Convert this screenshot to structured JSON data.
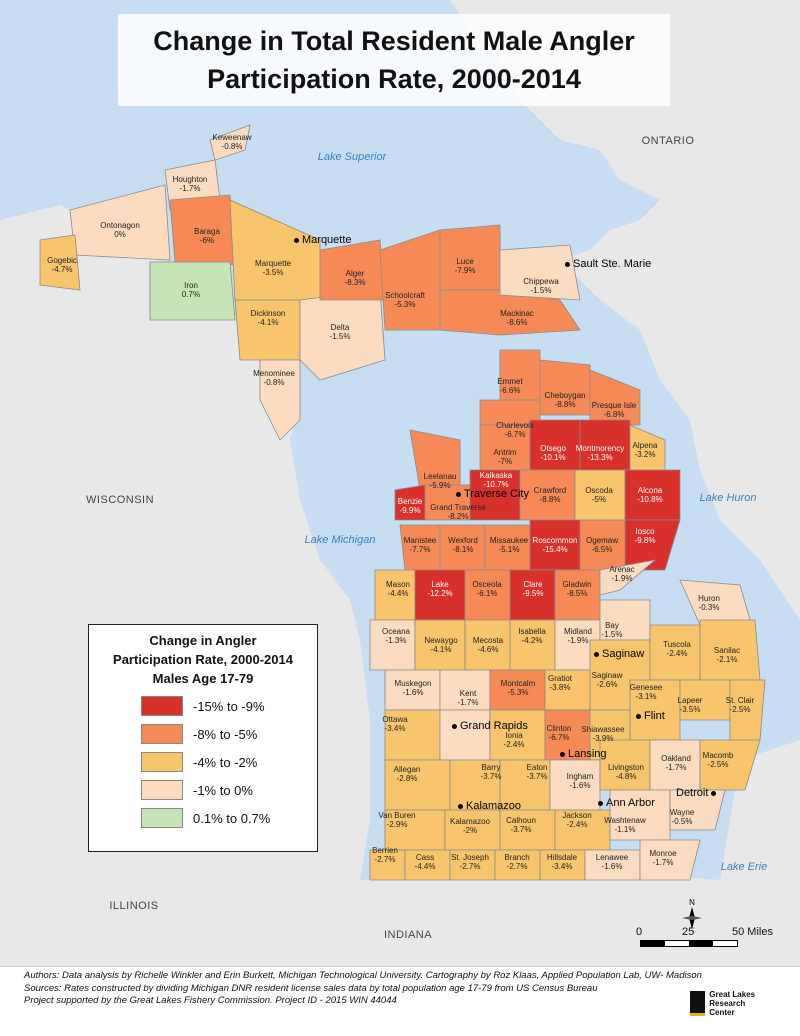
{
  "title": {
    "line1": "Change in Total Resident Male Angler",
    "line2": "Participation Rate, 2000-2014"
  },
  "colors": {
    "class_1": "#d8302b",
    "class_2": "#f58a57",
    "class_3": "#f8c56c",
    "class_4": "#fbdcc1",
    "class_5": "#c6e5b6",
    "land_other": "#e8e8e8",
    "water": "#c6ddf2"
  },
  "legend": {
    "title_line1": "Change in Angler",
    "title_line2": "Participation Rate, 2000-2014",
    "title_line3": "Males Age 17-79",
    "items": [
      {
        "label": "-15% to -9%",
        "color": "#d8302b"
      },
      {
        "label": "-8% to -5%",
        "color": "#f58a57"
      },
      {
        "label": "-4% to -2%",
        "color": "#f8c56c"
      },
      {
        "label": "-1% to 0%",
        "color": "#fbdcc1"
      },
      {
        "label": "0.1% to 0.7%",
        "color": "#c6e5b6"
      }
    ]
  },
  "water_labels": {
    "superior": "Lake Superior",
    "michigan": "Lake Michigan",
    "huron": "Lake Huron",
    "erie": "Lake Erie"
  },
  "region_labels": {
    "ontario": "ONTARIO",
    "wisconsin": "WISCONSIN",
    "illinois": "ILLINOIS",
    "indiana": "INDIANA"
  },
  "cities": {
    "marquette": "Marquette",
    "sault": "Sault Ste. Marie",
    "traverse": "Traverse City",
    "saginaw": "Saginaw",
    "flint": "Flint",
    "grand_rapids": "Grand Rapids",
    "lansing": "Lansing",
    "kalamazoo": "Kalamazoo",
    "ann_arbor": "Ann Arbor",
    "detroit": "Detroit"
  },
  "counties": [
    {
      "name": "Keweenaw",
      "value": "-0.8%",
      "cls": 4
    },
    {
      "name": "Houghton",
      "value": "-1.7%",
      "cls": 4
    },
    {
      "name": "Ontonagon",
      "value": "0%",
      "cls": 4
    },
    {
      "name": "Gogebic",
      "value": "-4.7%",
      "cls": 3
    },
    {
      "name": "Baraga",
      "value": "-6%",
      "cls": 2
    },
    {
      "name": "Iron",
      "value": "0.7%",
      "cls": 5
    },
    {
      "name": "Marquette",
      "value": "-3.5%",
      "cls": 3
    },
    {
      "name": "Dickinson",
      "value": "-4.1%",
      "cls": 3
    },
    {
      "name": "Menominee",
      "value": "-0.8%",
      "cls": 4
    },
    {
      "name": "Delta",
      "value": "-1.5%",
      "cls": 4
    },
    {
      "name": "Alger",
      "value": "-8.3%",
      "cls": 2
    },
    {
      "name": "Schoolcraft",
      "value": "-5.3%",
      "cls": 2
    },
    {
      "name": "Luce",
      "value": "-7.9%",
      "cls": 2
    },
    {
      "name": "Mackinac",
      "value": "-8.6%",
      "cls": 2
    },
    {
      "name": "Chippewa",
      "value": "-1.5%",
      "cls": 4
    },
    {
      "name": "Emmet",
      "value": "-6.6%",
      "cls": 2
    },
    {
      "name": "Cheboygan",
      "value": "-8.8%",
      "cls": 2
    },
    {
      "name": "Presque Isle",
      "value": "-6.8%",
      "cls": 2
    },
    {
      "name": "Charlevoix",
      "value": "-6.7%",
      "cls": 2
    },
    {
      "name": "Antrim",
      "value": "-7%",
      "cls": 2
    },
    {
      "name": "Otsego",
      "value": "-10.1%",
      "cls": 1
    },
    {
      "name": "Montmorency",
      "value": "-13.3%",
      "cls": 1
    },
    {
      "name": "Alpena",
      "value": "-3.2%",
      "cls": 3
    },
    {
      "name": "Leelanau",
      "value": "-5.9%",
      "cls": 2
    },
    {
      "name": "Benzie",
      "value": "-9.9%",
      "cls": 1
    },
    {
      "name": "Grand Traverse",
      "value": "-8.2%",
      "cls": 2
    },
    {
      "name": "Kalkaska",
      "value": "-10.7%",
      "cls": 1
    },
    {
      "name": "Crawford",
      "value": "-8.8%",
      "cls": 2
    },
    {
      "name": "Oscoda",
      "value": "-5%",
      "cls": 3
    },
    {
      "name": "Alcona",
      "value": "-10.8%",
      "cls": 1
    },
    {
      "name": "Manistee",
      "value": "-7.7%",
      "cls": 2
    },
    {
      "name": "Wexford",
      "value": "-8.1%",
      "cls": 2
    },
    {
      "name": "Missaukee",
      "value": "-5.1%",
      "cls": 2
    },
    {
      "name": "Roscommon",
      "value": "-15.4%",
      "cls": 1
    },
    {
      "name": "Ogemaw",
      "value": "-6.5%",
      "cls": 2
    },
    {
      "name": "Iosco",
      "value": "-9.8%",
      "cls": 1
    },
    {
      "name": "Mason",
      "value": "-4.4%",
      "cls": 3
    },
    {
      "name": "Lake",
      "value": "-12.2%",
      "cls": 1
    },
    {
      "name": "Osceola",
      "value": "-6.1%",
      "cls": 2
    },
    {
      "name": "Clare",
      "value": "-9.5%",
      "cls": 1
    },
    {
      "name": "Gladwin",
      "value": "-8.5%",
      "cls": 2
    },
    {
      "name": "Arenac",
      "value": "-1.9%",
      "cls": 4
    },
    {
      "name": "Oceana",
      "value": "-1.3%",
      "cls": 4
    },
    {
      "name": "Newaygo",
      "value": "-4.1%",
      "cls": 3
    },
    {
      "name": "Mecosta",
      "value": "-4.6%",
      "cls": 3
    },
    {
      "name": "Isabella",
      "value": "-4.2%",
      "cls": 3
    },
    {
      "name": "Midland",
      "value": "-1.9%",
      "cls": 4
    },
    {
      "name": "Bay",
      "value": "-1.5%",
      "cls": 4
    },
    {
      "name": "Huron",
      "value": "-0.3%",
      "cls": 4
    },
    {
      "name": "Muskegon",
      "value": "-1.6%",
      "cls": 4
    },
    {
      "name": "Montcalm",
      "value": "-5.3%",
      "cls": 2
    },
    {
      "name": "Gratiot",
      "value": "-3.8%",
      "cls": 3
    },
    {
      "name": "Saginaw",
      "value": "-2.6%",
      "cls": 3
    },
    {
      "name": "Tuscola",
      "value": "-2.4%",
      "cls": 3
    },
    {
      "name": "Sanilac",
      "value": "-2.1%",
      "cls": 3
    },
    {
      "name": "Kent",
      "value": "-1.7%",
      "cls": 4
    },
    {
      "name": "Ionia",
      "value": "-2.4%",
      "cls": 3
    },
    {
      "name": "Clinton",
      "value": "-6.7%",
      "cls": 2
    },
    {
      "name": "Shiawassee",
      "value": "-3.9%",
      "cls": 3
    },
    {
      "name": "Genesee",
      "value": "-3.1%",
      "cls": 3
    },
    {
      "name": "Lapeer",
      "value": "-3.5%",
      "cls": 3
    },
    {
      "name": "St. Clair",
      "value": "-2.5%",
      "cls": 3
    },
    {
      "name": "Ottawa",
      "value": "-3.4%",
      "cls": 3
    },
    {
      "name": "Allegan",
      "value": "-2.8%",
      "cls": 3
    },
    {
      "name": "Barry",
      "value": "-3.7%",
      "cls": 3
    },
    {
      "name": "Eaton",
      "value": "-3.7%",
      "cls": 3
    },
    {
      "name": "Ingham",
      "value": "-1.6%",
      "cls": 4
    },
    {
      "name": "Livingston",
      "value": "-4.8%",
      "cls": 3
    },
    {
      "name": "Oakland",
      "value": "-1.7%",
      "cls": 4
    },
    {
      "name": "Macomb",
      "value": "-2.5%",
      "cls": 3
    },
    {
      "name": "Van Buren",
      "value": "-2.9%",
      "cls": 3
    },
    {
      "name": "Kalamazoo",
      "value": "-2%",
      "cls": 3
    },
    {
      "name": "Calhoun",
      "value": "-3.7%",
      "cls": 3
    },
    {
      "name": "Jackson",
      "value": "-2.4%",
      "cls": 3
    },
    {
      "name": "Washtenaw",
      "value": "-1.1%",
      "cls": 4
    },
    {
      "name": "Wayne",
      "value": "-0.5%",
      "cls": 4
    },
    {
      "name": "Berrien",
      "value": "-2.7%",
      "cls": 3
    },
    {
      "name": "Cass",
      "value": "-4.4%",
      "cls": 3
    },
    {
      "name": "St. Joseph",
      "value": "-2.7%",
      "cls": 3
    },
    {
      "name": "Branch",
      "value": "-2.7%",
      "cls": 3
    },
    {
      "name": "Hillsdale",
      "value": "-3.4%",
      "cls": 3
    },
    {
      "name": "Lenawee",
      "value": "-1.6%",
      "cls": 4
    },
    {
      "name": "Monroe",
      "value": "-1.7%",
      "cls": 4
    }
  ],
  "scale": {
    "t0": "0",
    "t1": "25",
    "t2": "50 Miles"
  },
  "north": "N",
  "footer": {
    "line1": "Authors: Data analysis by Richelle Winkler and Erin Burkett, Michigan Technological University. Cartography by Roz Klaas, Applied Population Lab, UW- Madison",
    "line2": "Sources: Rates constructed by dividing Michigan DNR resident license sales data by total population age 17-79 from US Census Bureau",
    "line3": "Project supported by the Great Lakes Fishery Commission. Project ID - 2015 WIN 44044"
  },
  "logo": {
    "line1": "Great Lakes",
    "line2": "Research Center"
  }
}
